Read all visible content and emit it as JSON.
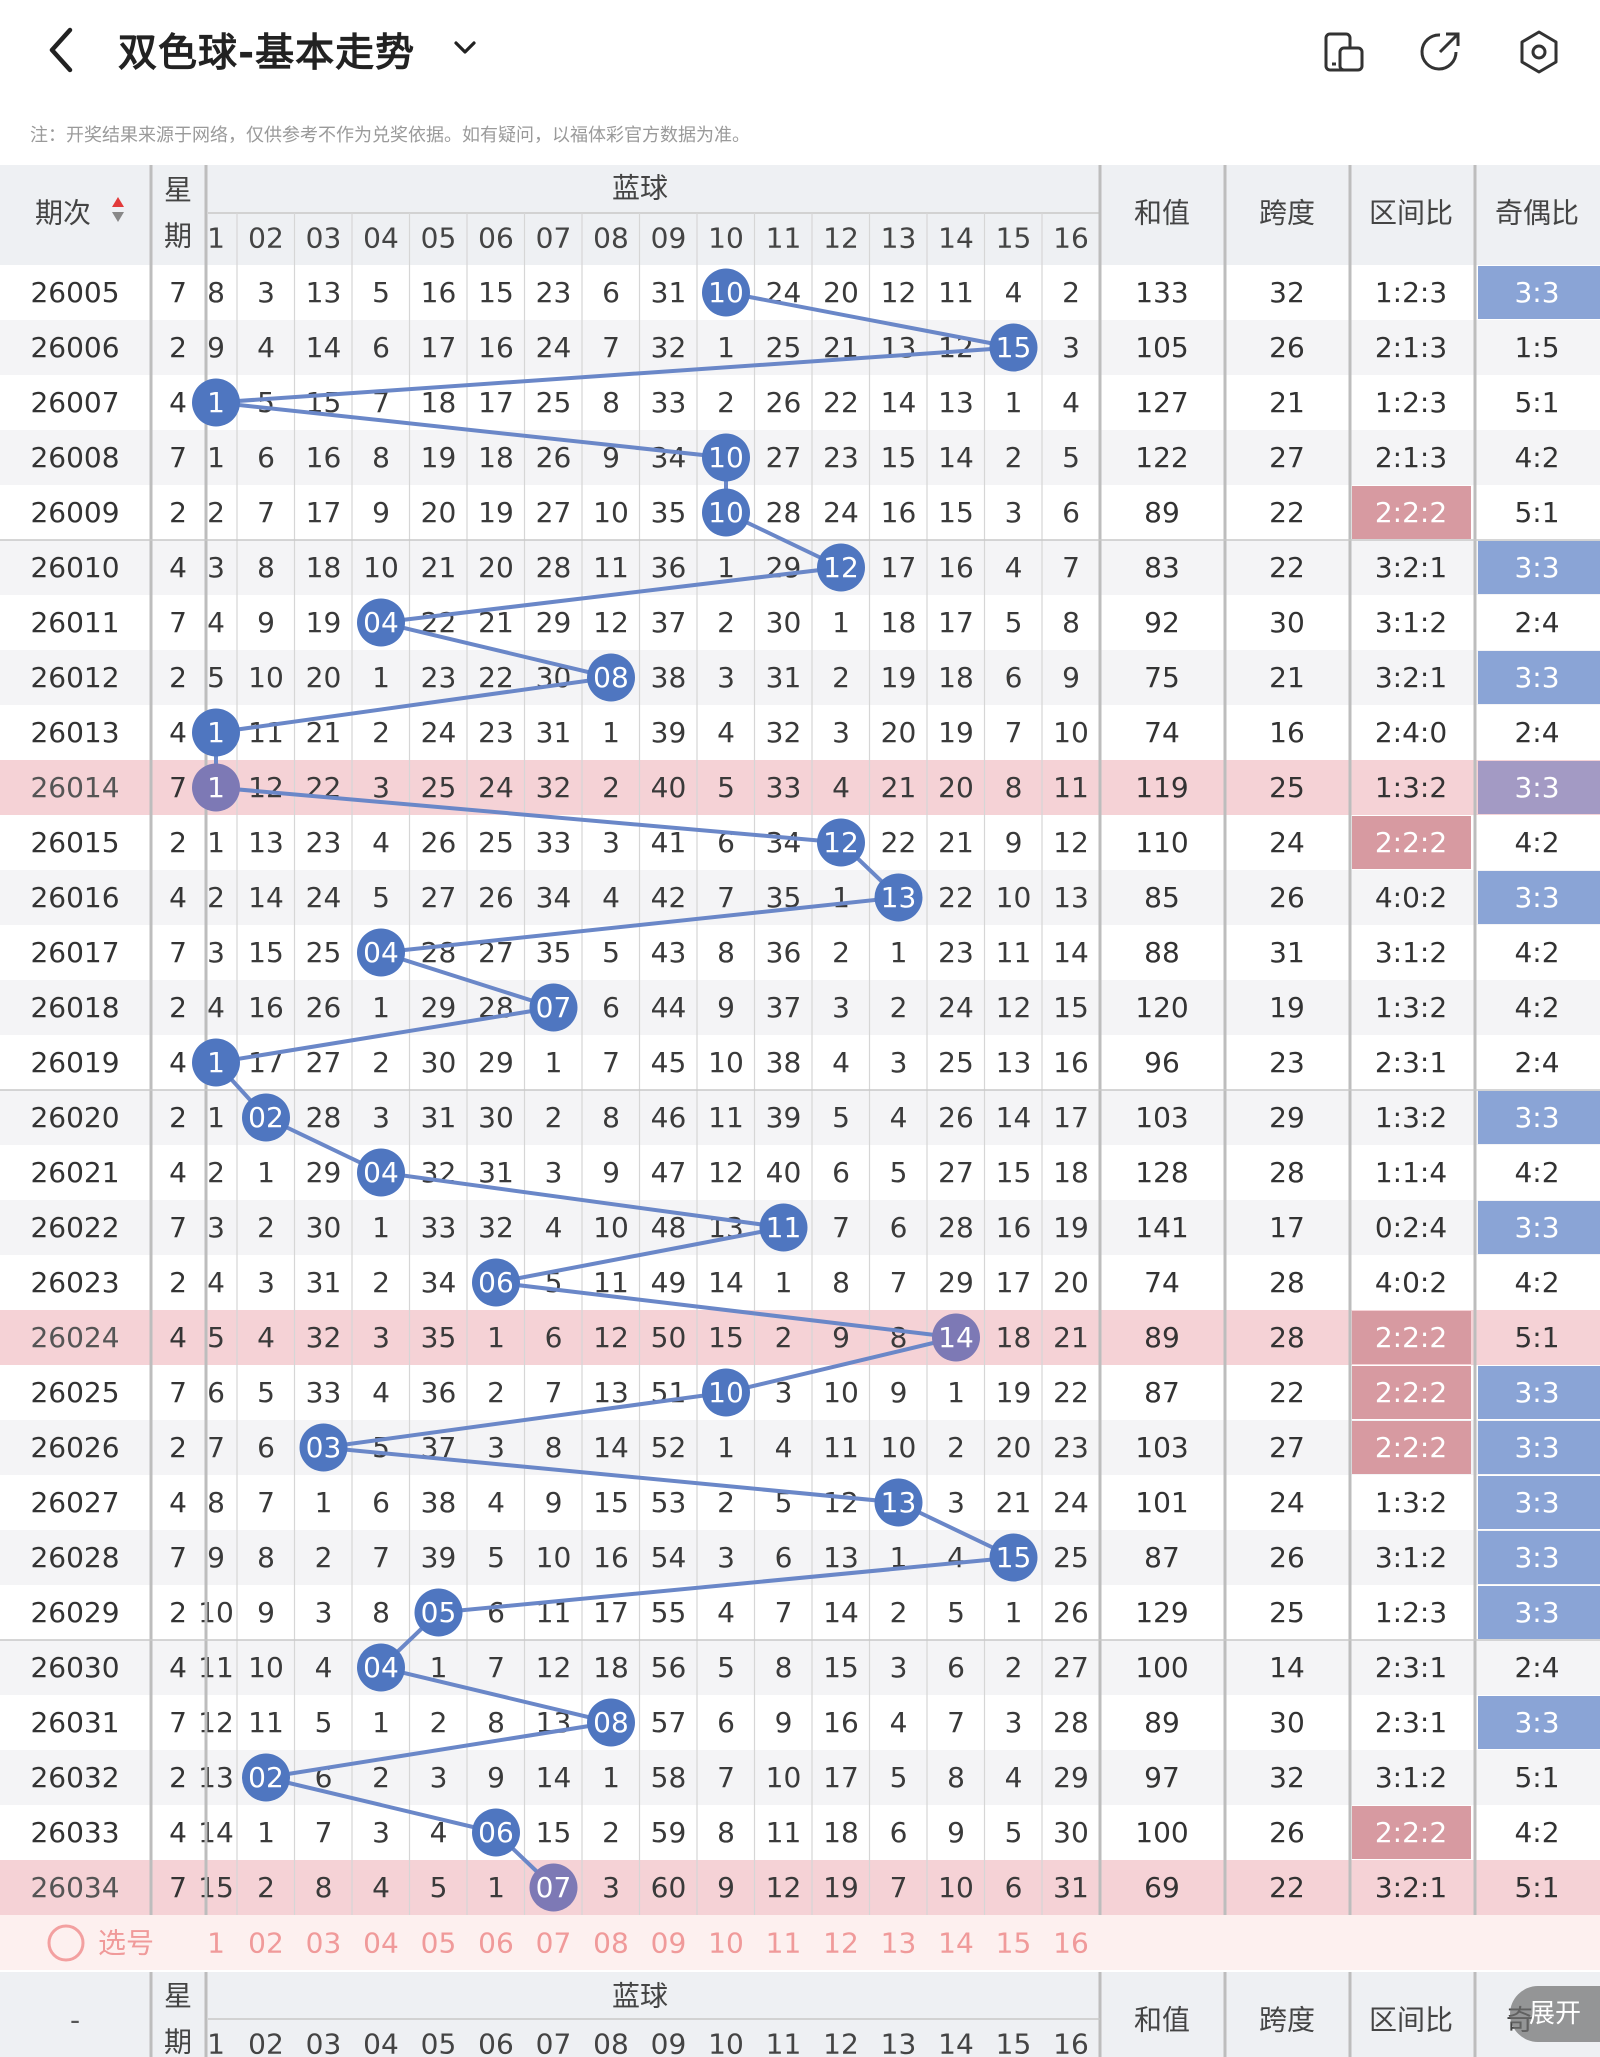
{
  "header": {
    "title": "双色球-基本走势",
    "note": "注：开奖结果来源于网络，仅供参考不作为兑奖依据。如有疑问，以福体彩官方数据为准。"
  },
  "table_header": {
    "period": "期次",
    "week_top": "星",
    "week_bottom": "期",
    "blue": "蓝球",
    "sum": "和值",
    "span": "跨度",
    "zone": "区间比",
    "odd": "奇偶比",
    "blue_numbers": [
      "1",
      "02",
      "03",
      "04",
      "05",
      "06",
      "07",
      "08",
      "09",
      "10",
      "11",
      "12",
      "13",
      "14",
      "15",
      "16"
    ]
  },
  "rows": [
    {
      "p": "26005",
      "w": "7",
      "v": [
        "8",
        "3",
        "13",
        "5",
        "16",
        "15",
        "23",
        "6",
        "31",
        "10",
        "24",
        "20",
        "12",
        "11",
        "4",
        "2"
      ],
      "s": "133",
      "k": "32",
      "z": "1:2:3",
      "o": "3:3",
      "b": 10,
      "hl": false,
      "zh": false,
      "oh": true
    },
    {
      "p": "26006",
      "w": "2",
      "v": [
        "9",
        "4",
        "14",
        "6",
        "17",
        "16",
        "24",
        "7",
        "32",
        "1",
        "25",
        "21",
        "13",
        "12",
        "15",
        "3"
      ],
      "s": "105",
      "k": "26",
      "z": "2:1:3",
      "o": "1:5",
      "b": 15,
      "hl": false,
      "zh": false,
      "oh": false
    },
    {
      "p": "26007",
      "w": "4",
      "v": [
        "1",
        "5",
        "15",
        "7",
        "18",
        "17",
        "25",
        "8",
        "33",
        "2",
        "26",
        "22",
        "14",
        "13",
        "1",
        "4"
      ],
      "s": "127",
      "k": "21",
      "z": "1:2:3",
      "o": "5:1",
      "b": 1,
      "hl": false,
      "zh": false,
      "oh": false
    },
    {
      "p": "26008",
      "w": "7",
      "v": [
        "1",
        "6",
        "16",
        "8",
        "19",
        "18",
        "26",
        "9",
        "34",
        "10",
        "27",
        "23",
        "15",
        "14",
        "2",
        "5"
      ],
      "s": "122",
      "k": "27",
      "z": "2:1:3",
      "o": "4:2",
      "b": 10,
      "hl": false,
      "zh": false,
      "oh": false
    },
    {
      "p": "26009",
      "w": "2",
      "v": [
        "2",
        "7",
        "17",
        "9",
        "20",
        "19",
        "27",
        "10",
        "35",
        "10",
        "28",
        "24",
        "16",
        "15",
        "3",
        "6"
      ],
      "s": "89",
      "k": "22",
      "z": "2:2:2",
      "o": "5:1",
      "b": 10,
      "hl": false,
      "zh": true,
      "oh": false
    },
    {
      "p": "26010",
      "w": "4",
      "v": [
        "3",
        "8",
        "18",
        "10",
        "21",
        "20",
        "28",
        "11",
        "36",
        "1",
        "29",
        "12",
        "17",
        "16",
        "4",
        "7"
      ],
      "s": "83",
      "k": "22",
      "z": "3:2:1",
      "o": "3:3",
      "b": 12,
      "hl": false,
      "zh": false,
      "oh": true
    },
    {
      "p": "26011",
      "w": "7",
      "v": [
        "4",
        "9",
        "19",
        "04",
        "22",
        "21",
        "29",
        "12",
        "37",
        "2",
        "30",
        "1",
        "18",
        "17",
        "5",
        "8"
      ],
      "s": "92",
      "k": "30",
      "z": "3:1:2",
      "o": "2:4",
      "b": 4,
      "hl": false,
      "zh": false,
      "oh": false
    },
    {
      "p": "26012",
      "w": "2",
      "v": [
        "5",
        "10",
        "20",
        "1",
        "23",
        "22",
        "30",
        "08",
        "38",
        "3",
        "31",
        "2",
        "19",
        "18",
        "6",
        "9"
      ],
      "s": "75",
      "k": "21",
      "z": "3:2:1",
      "o": "3:3",
      "b": 8,
      "hl": false,
      "zh": false,
      "oh": true
    },
    {
      "p": "26013",
      "w": "4",
      "v": [
        "1",
        "11",
        "21",
        "2",
        "24",
        "23",
        "31",
        "1",
        "39",
        "4",
        "32",
        "3",
        "20",
        "19",
        "7",
        "10"
      ],
      "s": "74",
      "k": "16",
      "z": "2:4:0",
      "o": "2:4",
      "b": 1,
      "hl": false,
      "zh": false,
      "oh": false
    },
    {
      "p": "26014",
      "w": "7",
      "v": [
        "1",
        "12",
        "22",
        "3",
        "25",
        "24",
        "32",
        "2",
        "40",
        "5",
        "33",
        "4",
        "21",
        "20",
        "8",
        "11"
      ],
      "s": "119",
      "k": "25",
      "z": "1:3:2",
      "o": "3:3",
      "b": 1,
      "hl": true,
      "zh": false,
      "oh": true
    },
    {
      "p": "26015",
      "w": "2",
      "v": [
        "1",
        "13",
        "23",
        "4",
        "26",
        "25",
        "33",
        "3",
        "41",
        "6",
        "34",
        "12",
        "22",
        "21",
        "9",
        "12"
      ],
      "s": "110",
      "k": "24",
      "z": "2:2:2",
      "o": "4:2",
      "b": 12,
      "hl": false,
      "zh": true,
      "oh": false
    },
    {
      "p": "26016",
      "w": "4",
      "v": [
        "2",
        "14",
        "24",
        "5",
        "27",
        "26",
        "34",
        "4",
        "42",
        "7",
        "35",
        "1",
        "13",
        "22",
        "10",
        "13"
      ],
      "s": "85",
      "k": "26",
      "z": "4:0:2",
      "o": "3:3",
      "b": 13,
      "hl": false,
      "zh": false,
      "oh": true
    },
    {
      "p": "26017",
      "w": "7",
      "v": [
        "3",
        "15",
        "25",
        "04",
        "28",
        "27",
        "35",
        "5",
        "43",
        "8",
        "36",
        "2",
        "1",
        "23",
        "11",
        "14"
      ],
      "s": "88",
      "k": "31",
      "z": "3:1:2",
      "o": "4:2",
      "b": 4,
      "hl": false,
      "zh": false,
      "oh": false
    },
    {
      "p": "26018",
      "w": "2",
      "v": [
        "4",
        "16",
        "26",
        "1",
        "29",
        "28",
        "07",
        "6",
        "44",
        "9",
        "37",
        "3",
        "2",
        "24",
        "12",
        "15"
      ],
      "s": "120",
      "k": "19",
      "z": "1:3:2",
      "o": "4:2",
      "b": 7,
      "hl": false,
      "zh": false,
      "oh": false
    },
    {
      "p": "26019",
      "w": "4",
      "v": [
        "1",
        "17",
        "27",
        "2",
        "30",
        "29",
        "1",
        "7",
        "45",
        "10",
        "38",
        "4",
        "3",
        "25",
        "13",
        "16"
      ],
      "s": "96",
      "k": "23",
      "z": "2:3:1",
      "o": "2:4",
      "b": 1,
      "hl": false,
      "zh": false,
      "oh": false
    },
    {
      "p": "26020",
      "w": "2",
      "v": [
        "1",
        "02",
        "28",
        "3",
        "31",
        "30",
        "2",
        "8",
        "46",
        "11",
        "39",
        "5",
        "4",
        "26",
        "14",
        "17"
      ],
      "s": "103",
      "k": "29",
      "z": "1:3:2",
      "o": "3:3",
      "b": 2,
      "hl": false,
      "zh": false,
      "oh": true
    },
    {
      "p": "26021",
      "w": "4",
      "v": [
        "2",
        "1",
        "29",
        "04",
        "32",
        "31",
        "3",
        "9",
        "47",
        "12",
        "40",
        "6",
        "5",
        "27",
        "15",
        "18"
      ],
      "s": "128",
      "k": "28",
      "z": "1:1:4",
      "o": "4:2",
      "b": 4,
      "hl": false,
      "zh": false,
      "oh": false
    },
    {
      "p": "26022",
      "w": "7",
      "v": [
        "3",
        "2",
        "30",
        "1",
        "33",
        "32",
        "4",
        "10",
        "48",
        "13",
        "11",
        "7",
        "6",
        "28",
        "16",
        "19"
      ],
      "s": "141",
      "k": "17",
      "z": "0:2:4",
      "o": "3:3",
      "b": 11,
      "hl": false,
      "zh": false,
      "oh": true
    },
    {
      "p": "26023",
      "w": "2",
      "v": [
        "4",
        "3",
        "31",
        "2",
        "34",
        "06",
        "5",
        "11",
        "49",
        "14",
        "1",
        "8",
        "7",
        "29",
        "17",
        "20"
      ],
      "s": "74",
      "k": "28",
      "z": "4:0:2",
      "o": "4:2",
      "b": 6,
      "hl": false,
      "zh": false,
      "oh": false
    },
    {
      "p": "26024",
      "w": "4",
      "v": [
        "5",
        "4",
        "32",
        "3",
        "35",
        "1",
        "6",
        "12",
        "50",
        "15",
        "2",
        "9",
        "8",
        "14",
        "18",
        "21"
      ],
      "s": "89",
      "k": "28",
      "z": "2:2:2",
      "o": "5:1",
      "b": 14,
      "hl": true,
      "zh": true,
      "oh": false
    },
    {
      "p": "26025",
      "w": "7",
      "v": [
        "6",
        "5",
        "33",
        "4",
        "36",
        "2",
        "7",
        "13",
        "51",
        "10",
        "3",
        "10",
        "9",
        "1",
        "19",
        "22"
      ],
      "s": "87",
      "k": "22",
      "z": "2:2:2",
      "o": "3:3",
      "b": 10,
      "hl": false,
      "zh": true,
      "oh": true
    },
    {
      "p": "26026",
      "w": "2",
      "v": [
        "7",
        "6",
        "03",
        "5",
        "37",
        "3",
        "8",
        "14",
        "52",
        "1",
        "4",
        "11",
        "10",
        "2",
        "20",
        "23"
      ],
      "s": "103",
      "k": "27",
      "z": "2:2:2",
      "o": "3:3",
      "b": 3,
      "hl": false,
      "zh": true,
      "oh": true
    },
    {
      "p": "26027",
      "w": "4",
      "v": [
        "8",
        "7",
        "1",
        "6",
        "38",
        "4",
        "9",
        "15",
        "53",
        "2",
        "5",
        "12",
        "13",
        "3",
        "21",
        "24"
      ],
      "s": "101",
      "k": "24",
      "z": "1:3:2",
      "o": "3:3",
      "b": 13,
      "hl": false,
      "zh": false,
      "oh": true
    },
    {
      "p": "26028",
      "w": "7",
      "v": [
        "9",
        "8",
        "2",
        "7",
        "39",
        "5",
        "10",
        "16",
        "54",
        "3",
        "6",
        "13",
        "1",
        "4",
        "15",
        "25"
      ],
      "s": "87",
      "k": "26",
      "z": "3:1:2",
      "o": "3:3",
      "b": 15,
      "hl": false,
      "zh": false,
      "oh": true
    },
    {
      "p": "26029",
      "w": "2",
      "v": [
        "10",
        "9",
        "3",
        "8",
        "05",
        "6",
        "11",
        "17",
        "55",
        "4",
        "7",
        "14",
        "2",
        "5",
        "1",
        "26"
      ],
      "s": "129",
      "k": "25",
      "z": "1:2:3",
      "o": "3:3",
      "b": 5,
      "hl": false,
      "zh": false,
      "oh": true
    },
    {
      "p": "26030",
      "w": "4",
      "v": [
        "11",
        "10",
        "4",
        "04",
        "1",
        "7",
        "12",
        "18",
        "56",
        "5",
        "8",
        "15",
        "3",
        "6",
        "2",
        "27"
      ],
      "s": "100",
      "k": "14",
      "z": "2:3:1",
      "o": "2:4",
      "b": 4,
      "hl": false,
      "zh": false,
      "oh": false
    },
    {
      "p": "26031",
      "w": "7",
      "v": [
        "12",
        "11",
        "5",
        "1",
        "2",
        "8",
        "13",
        "08",
        "57",
        "6",
        "9",
        "16",
        "4",
        "7",
        "3",
        "28"
      ],
      "s": "89",
      "k": "30",
      "z": "2:3:1",
      "o": "3:3",
      "b": 8,
      "hl": false,
      "zh": false,
      "oh": true
    },
    {
      "p": "26032",
      "w": "2",
      "v": [
        "13",
        "02",
        "6",
        "2",
        "3",
        "9",
        "14",
        "1",
        "58",
        "7",
        "10",
        "17",
        "5",
        "8",
        "4",
        "29"
      ],
      "s": "97",
      "k": "32",
      "z": "3:1:2",
      "o": "5:1",
      "b": 2,
      "hl": false,
      "zh": false,
      "oh": false
    },
    {
      "p": "26033",
      "w": "4",
      "v": [
        "14",
        "1",
        "7",
        "3",
        "4",
        "06",
        "15",
        "2",
        "59",
        "8",
        "11",
        "18",
        "6",
        "9",
        "5",
        "30"
      ],
      "s": "100",
      "k": "26",
      "z": "2:2:2",
      "o": "4:2",
      "b": 6,
      "hl": false,
      "zh": true,
      "oh": false
    },
    {
      "p": "26034",
      "w": "7",
      "v": [
        "15",
        "2",
        "8",
        "4",
        "5",
        "1",
        "07",
        "3",
        "60",
        "9",
        "12",
        "19",
        "7",
        "10",
        "6",
        "31"
      ],
      "s": "69",
      "k": "22",
      "z": "3:2:1",
      "o": "5:1",
      "b": 7,
      "hl": true,
      "zh": false,
      "oh": false
    }
  ],
  "footer": {
    "select_label": "选号",
    "select_numbers": [
      "1",
      "02",
      "03",
      "04",
      "05",
      "06",
      "07",
      "08",
      "09",
      "10",
      "11",
      "12",
      "13",
      "14",
      "15",
      "16"
    ],
    "period_dash": "-",
    "expand_label": "展开",
    "odd_partial": "奇"
  },
  "colors": {
    "ball": "#4f76c0",
    "ball_hl": "#7d79b5",
    "line": "#6a87c8",
    "row_highlight": "#f5d2d6",
    "zone_highlight": "#d79aa1",
    "odd_highlight": "#8aa4d6",
    "odd_highlight_row": "#a39ac4",
    "select_number": "#f09a9a"
  },
  "icons": [
    "back-arrow-icon",
    "dropdown-chevron-icon",
    "phone-landscape-icon",
    "share-icon",
    "settings-icon",
    "circle-select-icon"
  ]
}
